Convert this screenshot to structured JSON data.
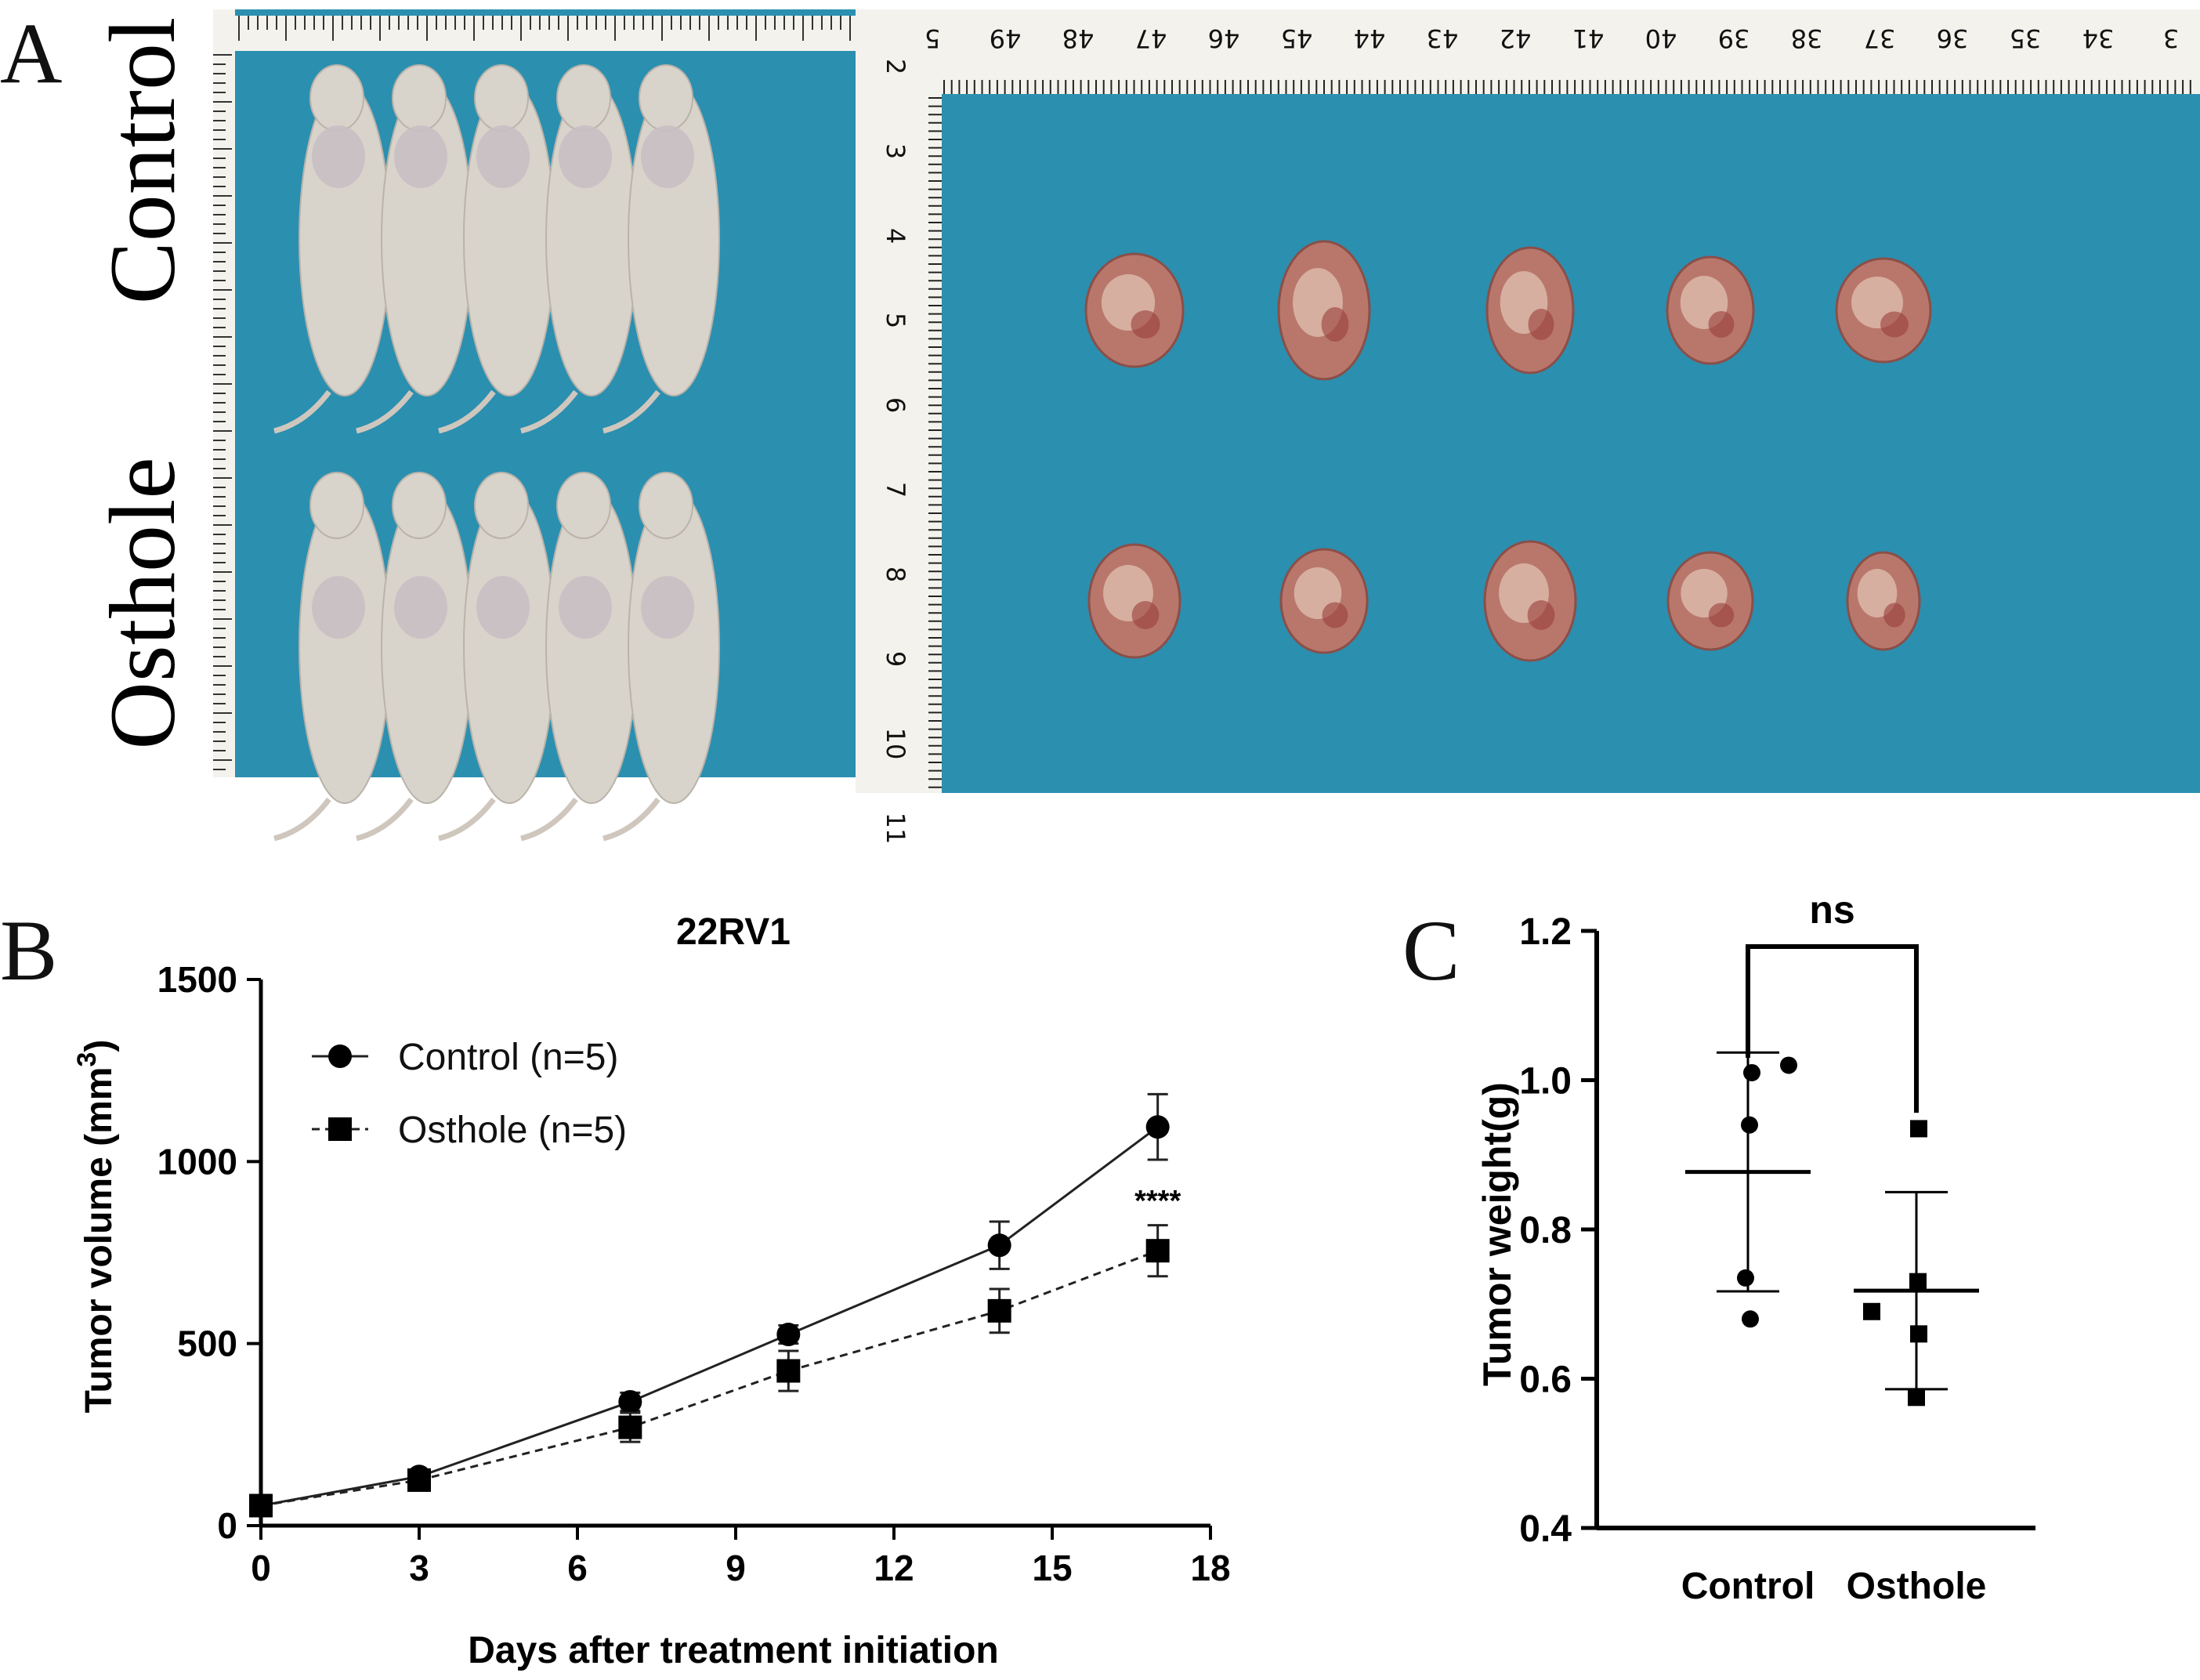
{
  "figure": {
    "panel_a": {
      "letter": "A",
      "row_labels": [
        "Control",
        "Osthole"
      ],
      "ruler_top_numbers": [
        "5",
        "49",
        "48",
        "47",
        "46",
        "45",
        "44",
        "43",
        "42",
        "41",
        "40",
        "39",
        "38",
        "37",
        "36",
        "35",
        "34",
        "3"
      ],
      "ruler_left_numbers": [
        "2",
        "3",
        "4",
        "5",
        "6",
        "7",
        "8",
        "9",
        "10",
        "11"
      ],
      "colors": {
        "background_cloth": "#2b8fb0",
        "ruler": "#f3f2ec",
        "mouse": "#d8d3cb",
        "tumor": "#b9776c"
      }
    }
  },
  "chart_data": [
    {
      "panel": "B",
      "type": "line",
      "title": "22RV1",
      "xlabel": "Days after treatment initiation",
      "ylabel": "Tumor volume (mm",
      "ylabel_superscript": "3",
      "ylabel_close": ")",
      "xlim": [
        0,
        18
      ],
      "ylim": [
        0,
        1500
      ],
      "xticks": [
        0,
        3,
        6,
        9,
        12,
        15,
        18
      ],
      "yticks": [
        0,
        500,
        1000,
        1500
      ],
      "series": [
        {
          "name": "Control (n=5)",
          "marker": "circle",
          "line": "solid",
          "x": [
            0,
            3,
            7,
            10,
            14,
            17
          ],
          "y": [
            55,
            135,
            340,
            525,
            770,
            1095
          ],
          "err": [
            8,
            15,
            25,
            25,
            65,
            90
          ]
        },
        {
          "name": "Osthole (n=5)",
          "marker": "square",
          "line": "dashed",
          "x": [
            0,
            3,
            7,
            10,
            14,
            17
          ],
          "y": [
            55,
            125,
            270,
            425,
            590,
            755
          ],
          "err": [
            8,
            12,
            40,
            55,
            60,
            70
          ]
        }
      ],
      "annotation": {
        "text": "****",
        "x": 17,
        "y": 895
      },
      "legend_position": "top-left"
    },
    {
      "panel": "C",
      "type": "scatter",
      "xlabel": "",
      "ylabel": "Tumor weight(g)",
      "ylim": [
        0.4,
        1.2
      ],
      "yticks": [
        "0.4",
        "0.6",
        "0.8",
        "1.0",
        "1.2"
      ],
      "categories": [
        "Control",
        "Osthole"
      ],
      "groups": [
        {
          "name": "Control",
          "marker": "circle",
          "points": [
            1.01,
            1.02,
            0.94,
            0.735,
            0.68
          ],
          "mean": 0.877,
          "sd": 0.16
        },
        {
          "name": "Osthole",
          "marker": "square",
          "points": [
            0.935,
            0.73,
            0.69,
            0.66,
            0.575
          ],
          "mean": 0.718,
          "sd": 0.132
        }
      ],
      "significance": {
        "text": "ns",
        "between": [
          "Control",
          "Osthole"
        ]
      }
    }
  ]
}
